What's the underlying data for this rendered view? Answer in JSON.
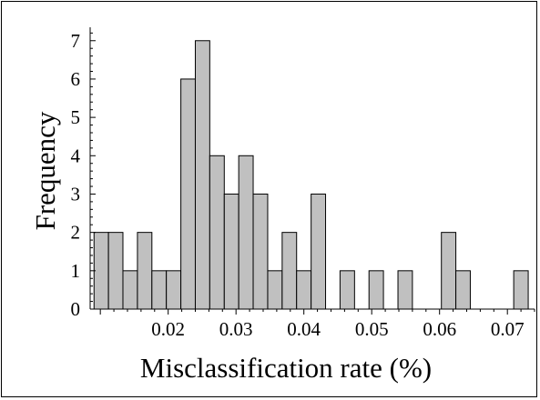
{
  "chart_data": {
    "type": "bar",
    "title": "",
    "xlabel": "Misclassification rate (%)",
    "ylabel": "Frequency",
    "bin_width": 0.00213,
    "bins": [
      {
        "x0": 0.00907,
        "x1": 0.0112,
        "count": 2
      },
      {
        "x0": 0.0112,
        "x1": 0.01333,
        "count": 2
      },
      {
        "x0": 0.01333,
        "x1": 0.01547,
        "count": 1
      },
      {
        "x0": 0.01547,
        "x1": 0.0176,
        "count": 2
      },
      {
        "x0": 0.0176,
        "x1": 0.01973,
        "count": 1
      },
      {
        "x0": 0.01973,
        "x1": 0.02187,
        "count": 1
      },
      {
        "x0": 0.02187,
        "x1": 0.024,
        "count": 6
      },
      {
        "x0": 0.024,
        "x1": 0.02613,
        "count": 7
      },
      {
        "x0": 0.02613,
        "x1": 0.02827,
        "count": 4
      },
      {
        "x0": 0.02827,
        "x1": 0.0304,
        "count": 3
      },
      {
        "x0": 0.0304,
        "x1": 0.03253,
        "count": 4
      },
      {
        "x0": 0.03253,
        "x1": 0.03467,
        "count": 3
      },
      {
        "x0": 0.03467,
        "x1": 0.0368,
        "count": 1
      },
      {
        "x0": 0.0368,
        "x1": 0.03893,
        "count": 2
      },
      {
        "x0": 0.03893,
        "x1": 0.04107,
        "count": 1
      },
      {
        "x0": 0.04107,
        "x1": 0.0432,
        "count": 3
      },
      {
        "x0": 0.04533,
        "x1": 0.04747,
        "count": 1
      },
      {
        "x0": 0.0496,
        "x1": 0.05173,
        "count": 1
      },
      {
        "x0": 0.05387,
        "x1": 0.056,
        "count": 1
      },
      {
        "x0": 0.06027,
        "x1": 0.0624,
        "count": 2
      },
      {
        "x0": 0.0624,
        "x1": 0.06453,
        "count": 1
      },
      {
        "x0": 0.07093,
        "x1": 0.07307,
        "count": 1
      }
    ],
    "xlim": [
      0.0085,
      0.074
    ],
    "ylim": [
      0,
      7.35
    ],
    "x_ticks": [
      {
        "value": 0.02,
        "label": "0.02"
      },
      {
        "value": 0.03,
        "label": "0.03"
      },
      {
        "value": 0.04,
        "label": "0.04"
      },
      {
        "value": 0.05,
        "label": "0.05"
      },
      {
        "value": 0.06,
        "label": "0.06"
      },
      {
        "value": 0.07,
        "label": "0.07"
      }
    ],
    "x_minor_step": 0.002,
    "y_ticks": [
      {
        "value": 0,
        "label": "0"
      },
      {
        "value": 1,
        "label": "1"
      },
      {
        "value": 2,
        "label": "2"
      },
      {
        "value": 3,
        "label": "3"
      },
      {
        "value": 4,
        "label": "4"
      },
      {
        "value": 5,
        "label": "5"
      },
      {
        "value": 6,
        "label": "6"
      },
      {
        "value": 7,
        "label": "7"
      }
    ],
    "y_minor_step": 0.2,
    "grid": false,
    "legend": "none",
    "colors": {
      "bar_fill": "#c0c0c0",
      "bar_stroke": "#000000",
      "axis": "#000000",
      "text": "#000000"
    }
  }
}
